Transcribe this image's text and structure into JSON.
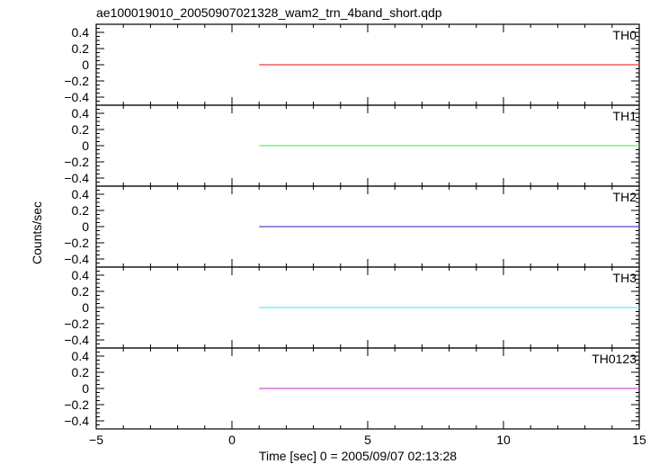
{
  "chart_data": {
    "type": "line",
    "title": "ae100019010_20050907021328_wam2_trn_4band_short.qdp",
    "xlabel": "Time [sec] 0 = 2005/09/07 02:13:28",
    "ylabel": "Counts/sec",
    "xlim": [
      -5,
      15
    ],
    "ylim": [
      -0.5,
      0.5
    ],
    "x_ticks": [
      -5,
      0,
      5,
      10,
      15
    ],
    "x_tick_labels": [
      "−5",
      "0",
      "5",
      "10",
      "15"
    ],
    "y_ticks": [
      0.4,
      0.2,
      0,
      -0.2,
      -0.4
    ],
    "y_tick_labels": [
      "0.4",
      "0.2",
      "0",
      "−0.2",
      "−0.4"
    ],
    "grid": false,
    "panels": [
      {
        "name": "TH0",
        "color": "#e8413b",
        "x": [
          1,
          15
        ],
        "values": [
          0,
          0
        ]
      },
      {
        "name": "TH1",
        "color": "#66ee66",
        "x": [
          1,
          15
        ],
        "values": [
          0,
          0
        ]
      },
      {
        "name": "TH2",
        "color": "#4a4ac8",
        "x": [
          1,
          15
        ],
        "values": [
          0,
          0
        ]
      },
      {
        "name": "TH3",
        "color": "#66eeee",
        "x": [
          1,
          15
        ],
        "values": [
          0,
          0
        ]
      },
      {
        "name": "TH0123",
        "color": "#cc55cc",
        "x": [
          1,
          15
        ],
        "values": [
          0,
          0
        ]
      }
    ]
  }
}
